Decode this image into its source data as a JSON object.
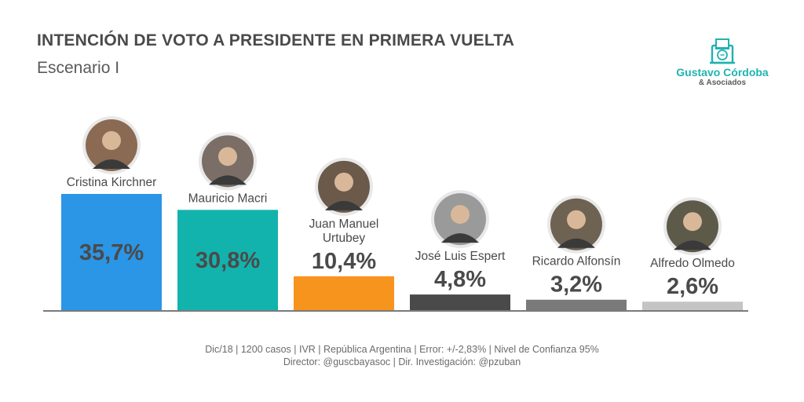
{
  "header": {
    "title": "INTENCIÓN DE VOTO A PRESIDENTE EN PRIMERA VUELTA",
    "subtitle": "Escenario I"
  },
  "logo": {
    "name": "Gustavo Córdoba",
    "sub": "& Asociados",
    "color": "#1fb3b0"
  },
  "chart_data": {
    "type": "bar",
    "categories": [
      "Cristina Kirchner",
      "Mauricio Macri",
      "Juan Manuel Urtubey",
      "José Luis Espert",
      "Ricardo Alfonsín",
      "Alfredo Olmedo"
    ],
    "category_lines": [
      [
        "Cristina Kirchner"
      ],
      [
        "Mauricio Macri"
      ],
      [
        "Juan Manuel",
        "Urtubey"
      ],
      [
        "José Luis Espert"
      ],
      [
        "Ricardo Alfonsín"
      ],
      [
        "Alfredo Olmedo"
      ]
    ],
    "values": [
      35.7,
      30.8,
      10.4,
      4.8,
      3.2,
      2.6
    ],
    "value_labels": [
      "35,7%",
      "30,8%",
      "10,4%",
      "4,8%",
      "3,2%",
      "2,6%"
    ],
    "colors": [
      "#2b95e6",
      "#13b3ad",
      "#f7941d",
      "#4a4a4a",
      "#7a7a7a",
      "#c4c4c4"
    ],
    "avatar_colors": [
      "#8a6a52",
      "#7a6e66",
      "#6b5a4a",
      "#9a9a9a",
      "#6e6252",
      "#5e5a4a"
    ],
    "title": "INTENCIÓN DE VOTO A PRESIDENTE EN PRIMERA VUELTA",
    "subtitle": "Escenario I",
    "xlabel": "",
    "ylabel": "",
    "ylim": [
      0,
      35.7
    ],
    "grid": false
  },
  "footer": {
    "line1": "Dic/18 | 1200 casos | IVR | República Argentina | Error: +/-2,83% | Nivel de Confianza 95%",
    "line2": "Director: @guscbayasoc | Dir. Investigación: @pzuban"
  }
}
